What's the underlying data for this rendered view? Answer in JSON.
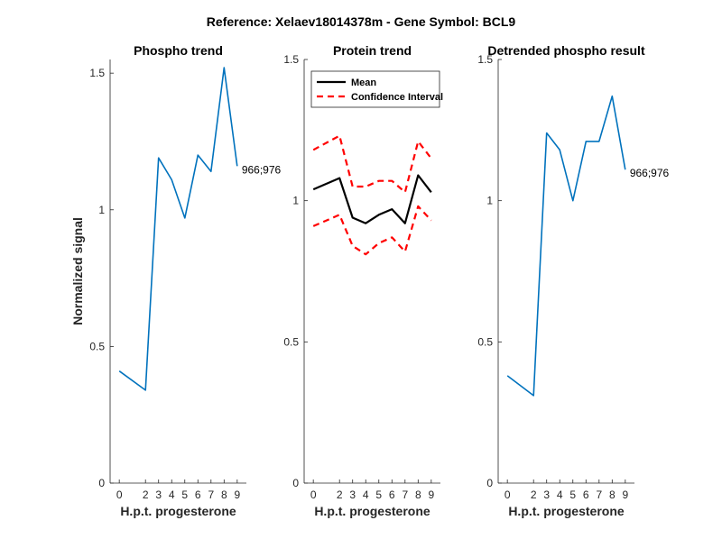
{
  "figure": {
    "title": "Reference:  Xelaev18014378m - Gene Symbol:  BCL9"
  },
  "chart_data": [
    {
      "type": "line",
      "title": "Phospho trend",
      "xlabel": "H.p.t. progesterone",
      "ylabel": "Normalized signal",
      "x": [
        0,
        2,
        3,
        4,
        5,
        6,
        7,
        8,
        9
      ],
      "x_tick_labels": [
        "0",
        "2",
        "3",
        "4",
        "5",
        "6",
        "7",
        "8",
        "9"
      ],
      "ylim": [
        0,
        1.55
      ],
      "y_ticks": [
        0,
        0.5,
        1,
        1.5
      ],
      "y_tick_labels": [
        "0",
        "0.5",
        "1",
        "1.5"
      ],
      "grid": false,
      "series": [
        {
          "values": [
            0.41,
            0.34,
            1.19,
            1.11,
            0.97,
            1.2,
            1.14,
            1.52,
            1.16
          ],
          "color": "#0072BD",
          "dash": "solid"
        }
      ],
      "annotation": "966;976"
    },
    {
      "type": "line",
      "title": "Protein trend",
      "xlabel": "H.p.t. progesterone",
      "ylabel": "",
      "x": [
        0,
        2,
        3,
        4,
        5,
        6,
        7,
        8,
        9
      ],
      "x_tick_labels": [
        "0",
        "2",
        "3",
        "4",
        "5",
        "6",
        "7",
        "8",
        "9"
      ],
      "ylim": [
        0,
        1.5
      ],
      "y_ticks": [
        0,
        0.5,
        1,
        1.5
      ],
      "y_tick_labels": [
        "0",
        "0.5",
        "1",
        "1.5"
      ],
      "grid": false,
      "legend": {
        "placement": "top-left"
      },
      "series": [
        {
          "name": "Mean",
          "values": [
            1.04,
            1.08,
            0.94,
            0.92,
            0.95,
            0.97,
            0.92,
            1.09,
            1.03
          ],
          "color": "#000000",
          "dash": "solid"
        },
        {
          "name": "Confidence Interval",
          "values": [
            1.18,
            1.23,
            1.05,
            1.05,
            1.07,
            1.07,
            1.03,
            1.21,
            1.15
          ],
          "color": "#FF0000",
          "dash": "dashed"
        },
        {
          "values": [
            0.91,
            0.95,
            0.84,
            0.81,
            0.85,
            0.87,
            0.82,
            0.98,
            0.93
          ],
          "color": "#FF0000",
          "dash": "dashed"
        }
      ]
    },
    {
      "type": "line",
      "title": "Detrended phospho result",
      "xlabel": "H.p.t. progesterone",
      "ylabel": "",
      "x": [
        0,
        2,
        3,
        4,
        5,
        6,
        7,
        8,
        9
      ],
      "x_tick_labels": [
        "0",
        "2",
        "3",
        "4",
        "5",
        "6",
        "7",
        "8",
        "9"
      ],
      "ylim": [
        0,
        1.5
      ],
      "y_ticks": [
        0,
        0.5,
        1,
        1.5
      ],
      "y_tick_labels": [
        "0",
        "0.5",
        "1",
        "1.5"
      ],
      "grid": false,
      "series": [
        {
          "values": [
            0.38,
            0.31,
            1.24,
            1.18,
            1.0,
            1.21,
            1.21,
            1.37,
            1.11
          ],
          "color": "#0072BD",
          "dash": "solid"
        }
      ],
      "annotation": "966;976"
    }
  ]
}
